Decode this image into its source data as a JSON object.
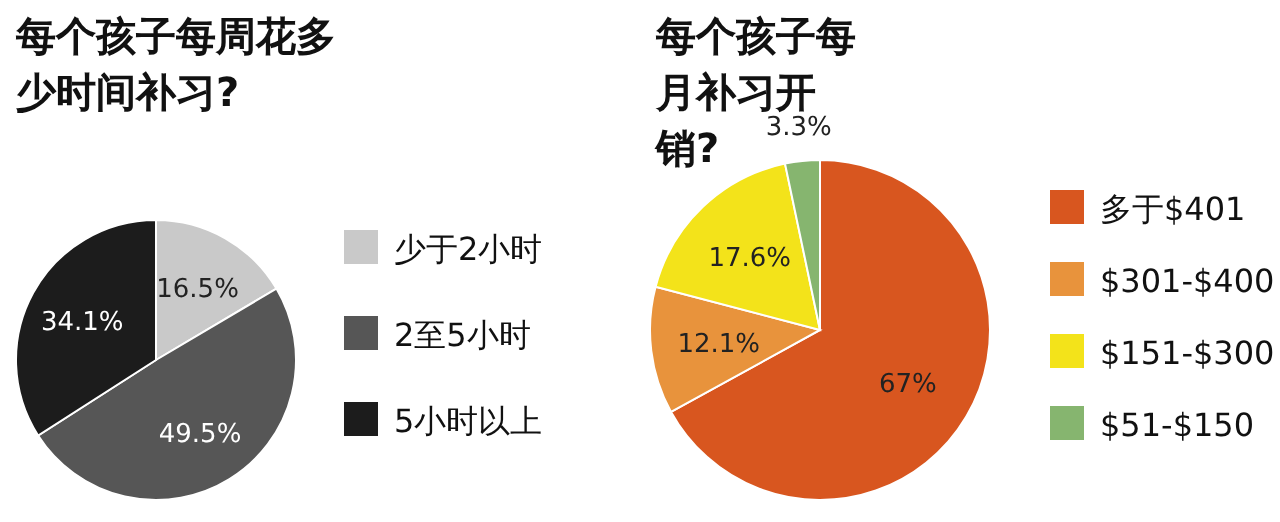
{
  "chart_data": [
    {
      "type": "pie",
      "title": "每个孩子每周花多少时间补习?",
      "categories": [
        "少于2小时",
        "2至5小时",
        "5小时以上"
      ],
      "values": [
        16.5,
        49.5,
        34.1
      ],
      "colors": [
        "#c9c9c9",
        "#565656",
        "#1c1c1c"
      ],
      "value_labels": [
        "16.5%",
        "49.5%",
        "34.1%"
      ],
      "legend": "right"
    },
    {
      "type": "pie",
      "title": "每个孩子每月补习开销?",
      "categories": [
        "多于$401",
        "$301-$400",
        "$151-$300",
        "$51-$150"
      ],
      "values": [
        67,
        12.1,
        17.6,
        3.3
      ],
      "colors": [
        "#d8561f",
        "#e8933c",
        "#f3e31a",
        "#86b56f"
      ],
      "value_labels": [
        "67%",
        "12.1%",
        "17.6%",
        "3.3%"
      ],
      "legend": "right"
    }
  ]
}
